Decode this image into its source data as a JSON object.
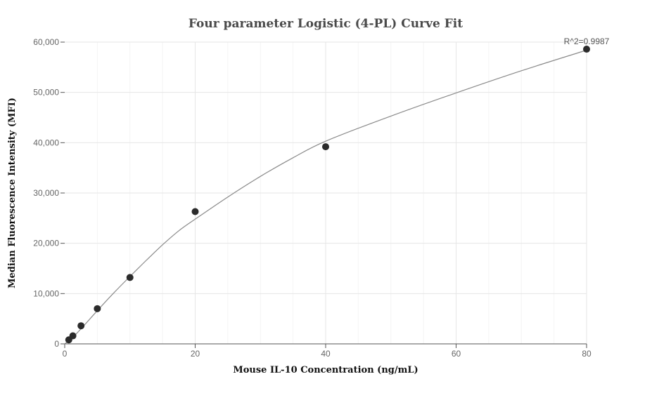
{
  "chart_data": {
    "type": "scatter",
    "title": "Four parameter Logistic (4-PL) Curve Fit",
    "xlabel": "Mouse IL-10 Concentration (ng/mL)",
    "ylabel": "Median Fluorescence Intensity (MFI)",
    "xlim": [
      0,
      80
    ],
    "ylim": [
      0,
      60000
    ],
    "x_ticks": [
      0,
      20,
      40,
      60,
      80
    ],
    "x_tick_labels": [
      "0",
      "20",
      "40",
      "60",
      "80"
    ],
    "y_ticks": [
      0,
      10000,
      20000,
      30000,
      40000,
      50000,
      60000
    ],
    "y_tick_labels": [
      "0",
      "10,000",
      "20,000",
      "30,000",
      "40,000",
      "50,000",
      "60,000"
    ],
    "grid": true,
    "annotation": "R^2=0.9987",
    "points": [
      {
        "x": 0.625,
        "y": 800
      },
      {
        "x": 1.25,
        "y": 1600
      },
      {
        "x": 2.5,
        "y": 3600
      },
      {
        "x": 5,
        "y": 7000
      },
      {
        "x": 10,
        "y": 13200
      },
      {
        "x": 20,
        "y": 26300
      },
      {
        "x": 40,
        "y": 39200
      },
      {
        "x": 80,
        "y": 58600
      }
    ],
    "fit_curve": [
      {
        "x": 0,
        "y": 0
      },
      {
        "x": 1,
        "y": 1000
      },
      {
        "x": 2.5,
        "y": 3000
      },
      {
        "x": 5,
        "y": 6600
      },
      {
        "x": 7.5,
        "y": 10100
      },
      {
        "x": 10,
        "y": 13400
      },
      {
        "x": 12.5,
        "y": 16600
      },
      {
        "x": 15,
        "y": 19700
      },
      {
        "x": 17.5,
        "y": 22500
      },
      {
        "x": 20,
        "y": 24800
      },
      {
        "x": 25,
        "y": 29200
      },
      {
        "x": 30,
        "y": 33300
      },
      {
        "x": 35,
        "y": 37000
      },
      {
        "x": 40,
        "y": 40300
      },
      {
        "x": 50,
        "y": 45300
      },
      {
        "x": 60,
        "y": 49900
      },
      {
        "x": 70,
        "y": 54300
      },
      {
        "x": 80,
        "y": 58400
      }
    ]
  }
}
